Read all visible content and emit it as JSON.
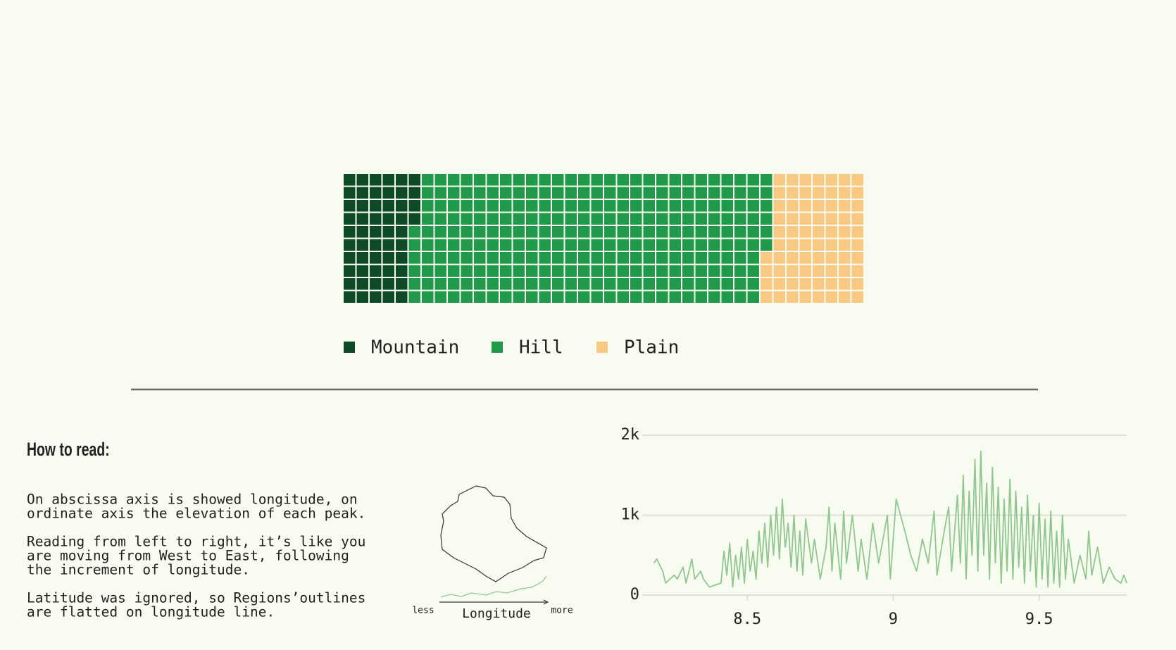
{
  "chart_data": [
    {
      "type": "waffle",
      "rows": 10,
      "columns": 40,
      "categories": [
        "Mountain",
        "Hill",
        "Plain"
      ],
      "values": [
        54,
        272,
        74
      ],
      "colors": [
        "#0e4a26",
        "#209a4a",
        "#f9c883"
      ]
    },
    {
      "type": "line",
      "color": "#8fc78e",
      "grid": true,
      "x": [
        8.18,
        8.19,
        8.21,
        8.22,
        8.25,
        8.26,
        8.28,
        8.29,
        8.31,
        8.32,
        8.34,
        8.35,
        8.37,
        8.41,
        8.42,
        8.43,
        8.44,
        8.45,
        8.46,
        8.47,
        8.48,
        8.49,
        8.5,
        8.51,
        8.52,
        8.53,
        8.54,
        8.55,
        8.56,
        8.57,
        8.58,
        8.59,
        8.6,
        8.61,
        8.62,
        8.63,
        8.64,
        8.65,
        8.66,
        8.67,
        8.68,
        8.69,
        8.7,
        8.72,
        8.73,
        8.75,
        8.77,
        8.78,
        8.79,
        8.8,
        8.82,
        8.83,
        8.84,
        8.86,
        8.88,
        8.89,
        8.91,
        8.93,
        8.95,
        8.96,
        8.98,
        8.99,
        9.01,
        9.04,
        9.06,
        9.08,
        9.1,
        9.12,
        9.14,
        9.15,
        9.17,
        9.19,
        9.2,
        9.22,
        9.23,
        9.24,
        9.25,
        9.26,
        9.27,
        9.28,
        9.29,
        9.3,
        9.31,
        9.32,
        9.33,
        9.34,
        9.35,
        9.36,
        9.37,
        9.38,
        9.39,
        9.4,
        9.41,
        9.42,
        9.43,
        9.44,
        9.45,
        9.46,
        9.47,
        9.48,
        9.49,
        9.5,
        9.51,
        9.52,
        9.53,
        9.54,
        9.55,
        9.56,
        9.57,
        9.58,
        9.59,
        9.6,
        9.62,
        9.64,
        9.66,
        9.67,
        9.68,
        9.7,
        9.72,
        9.74,
        9.76,
        9.78,
        9.79,
        9.8
      ],
      "values": [
        400,
        450,
        300,
        150,
        250,
        200,
        350,
        150,
        450,
        200,
        300,
        200,
        100,
        150,
        550,
        250,
        650,
        100,
        500,
        200,
        600,
        150,
        700,
        300,
        550,
        200,
        800,
        400,
        900,
        350,
        1000,
        500,
        1100,
        450,
        1200,
        600,
        900,
        350,
        1000,
        300,
        800,
        250,
        950,
        400,
        700,
        200,
        600,
        1100,
        300,
        900,
        200,
        1050,
        400,
        1000,
        300,
        700,
        200,
        900,
        400,
        600,
        1000,
        200,
        1200,
        800,
        500,
        300,
        700,
        400,
        1050,
        250,
        700,
        1100,
        300,
        1250,
        400,
        1500,
        200,
        1300,
        500,
        1700,
        300,
        1800,
        500,
        1400,
        200,
        1600,
        400,
        1350,
        150,
        1200,
        300,
        1450,
        200,
        1300,
        350,
        1100,
        150,
        1250,
        300,
        1000,
        100,
        1150,
        200,
        950,
        100,
        1050,
        150,
        800,
        100,
        1000,
        200,
        700,
        150,
        500,
        200,
        800,
        250,
        600,
        150,
        350,
        200,
        150,
        250,
        150
      ],
      "xlim": [
        8.14,
        9.8
      ],
      "xticks": [
        8.5,
        9,
        9.5
      ],
      "ylim": [
        0,
        2000
      ],
      "yticks": [
        {
          "value": 0,
          "label": "0"
        },
        {
          "value": 1000,
          "label": "1k"
        },
        {
          "value": 2000,
          "label": "2k"
        }
      ]
    }
  ],
  "how_to_read": {
    "title": "How to read:",
    "paragraphs": [
      [
        "On abscissa axis is showed longitude, on",
        "ordinate axis the elevation of each peak."
      ],
      [
        "Reading from left to right, it’s like you",
        "are moving from West to East, following",
        "the increment of longitude."
      ],
      [
        "Latitude was ignored, so Regions’outlines",
        "are flatted on longitude line."
      ]
    ],
    "inset": {
      "less": "less",
      "more": "more",
      "axis": "Longitude"
    }
  }
}
